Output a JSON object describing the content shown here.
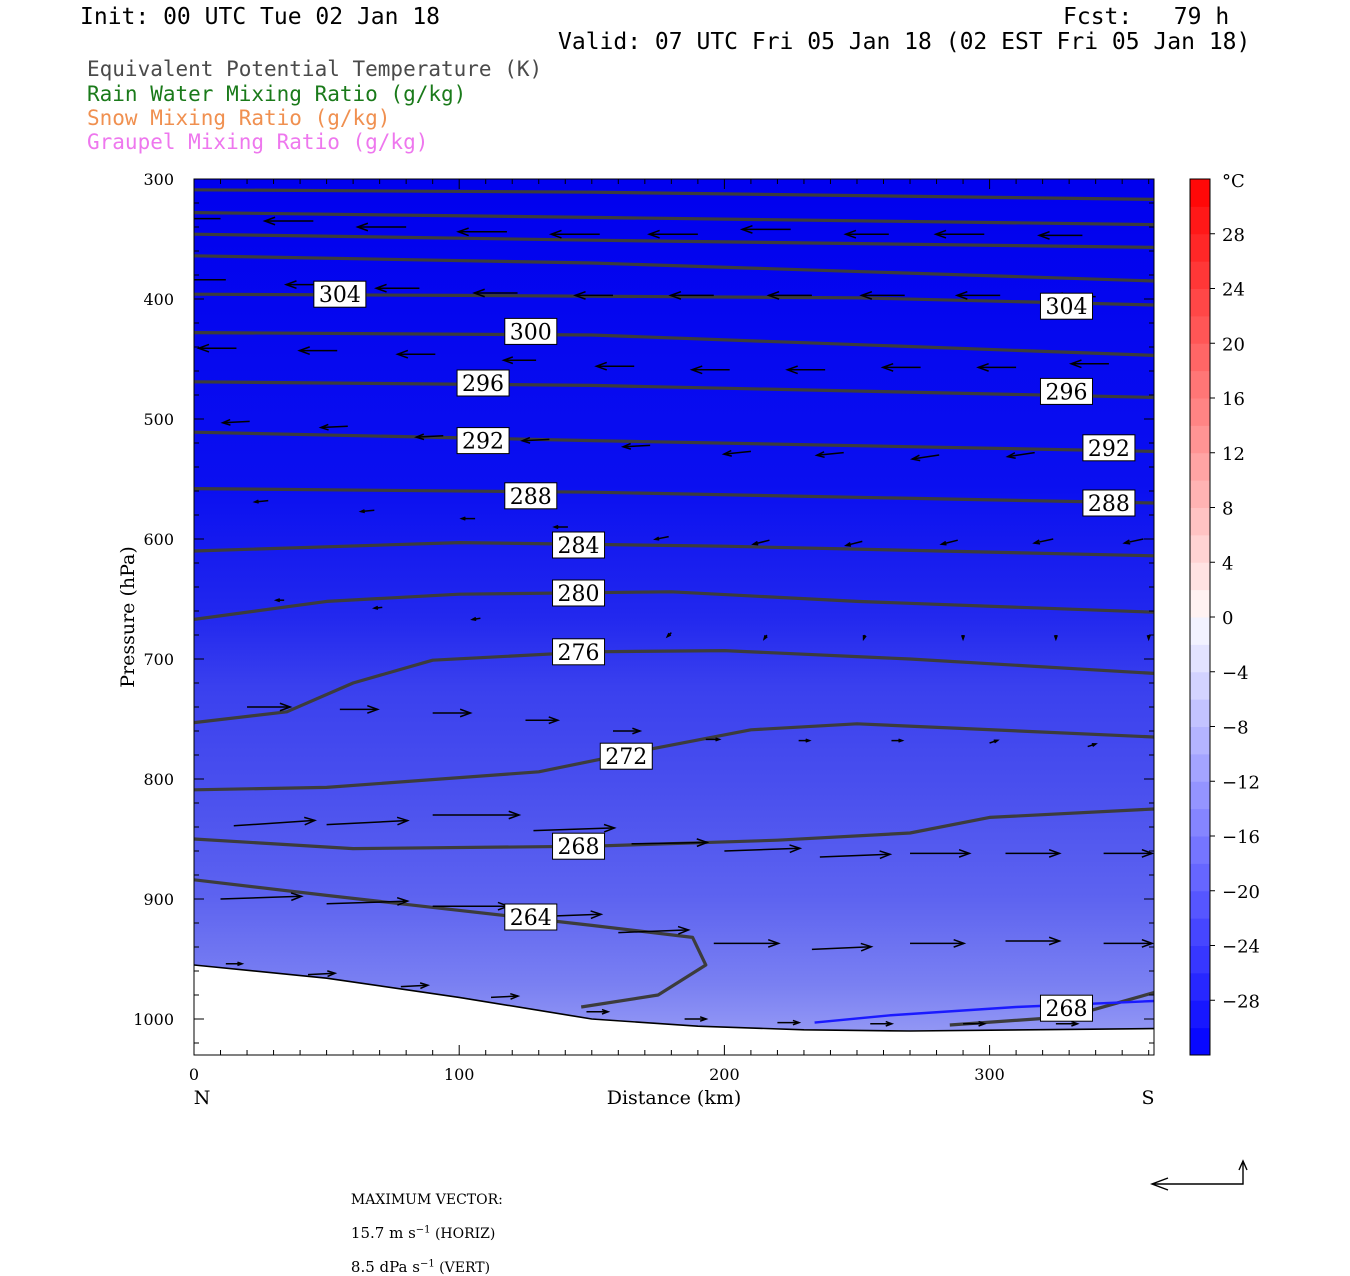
{
  "header": {
    "init": "Init: 00 UTC Tue 02 Jan 18",
    "fcst": "Fcst:   79 h",
    "valid": "Valid: 07 UTC Fri 05 Jan 18 (02 EST Fri 05 Jan 18)"
  },
  "legend": [
    {
      "text": "Equivalent Potential Temperature (K)",
      "color": "#4a4a4a"
    },
    {
      "text": "Rain Water Mixing Ratio (g/kg)",
      "color": "#1a7a1a"
    },
    {
      "text": "Snow Mixing Ratio (g/kg)",
      "color": "#f09050"
    },
    {
      "text": "Graupel Mixing Ratio (g/kg)",
      "color": "#ee77ee"
    }
  ],
  "chart_data": {
    "type": "cross-section",
    "xlabel": "Distance (km)",
    "ylabel": "Pressure (hPa)",
    "xlim": [
      0,
      362
    ],
    "ylim": [
      1030,
      300
    ],
    "x_ticks": [
      0,
      100,
      200,
      300
    ],
    "y_ticks": [
      300,
      400,
      500,
      600,
      700,
      800,
      900,
      1000
    ],
    "x_end_labels": {
      "left": "N",
      "right": "S"
    },
    "colorbar": {
      "unit": "°C",
      "bounds": [
        -32,
        32
      ],
      "tick_labels": [
        "28",
        "24",
        "20",
        "16",
        "12",
        "8",
        "4",
        "0",
        "−4",
        "−8",
        "−12",
        "−16",
        "−20",
        "−24",
        "−28"
      ],
      "tick_values": [
        28,
        24,
        20,
        16,
        12,
        8,
        4,
        0,
        -4,
        -8,
        -12,
        -16,
        -20,
        -24,
        -28
      ]
    },
    "theta_e_labels": [
      {
        "text": "304",
        "x": 55,
        "p": 396
      },
      {
        "text": "304",
        "x": 329,
        "p": 406
      },
      {
        "text": "300",
        "x": 127,
        "p": 427
      },
      {
        "text": "296",
        "x": 109,
        "p": 470
      },
      {
        "text": "296",
        "x": 329,
        "p": 477
      },
      {
        "text": "292",
        "x": 109,
        "p": 518
      },
      {
        "text": "292",
        "x": 345,
        "p": 524
      },
      {
        "text": "288",
        "x": 127,
        "p": 564
      },
      {
        "text": "288",
        "x": 345,
        "p": 570
      },
      {
        "text": "284",
        "x": 145,
        "p": 605
      },
      {
        "text": "280",
        "x": 145,
        "p": 645
      },
      {
        "text": "276",
        "x": 145,
        "p": 694
      },
      {
        "text": "272",
        "x": 163,
        "p": 781
      },
      {
        "text": "268",
        "x": 145,
        "p": 856
      },
      {
        "text": "264",
        "x": 127,
        "p": 915
      },
      {
        "text": "268",
        "x": 329,
        "p": 991
      }
    ],
    "theta_e_contours": [
      {
        "level": 312,
        "points": [
          [
            0,
            309
          ],
          [
            150,
            311
          ],
          [
            362,
            317
          ]
        ]
      },
      {
        "level": 308,
        "points": [
          [
            0,
            328
          ],
          [
            150,
            332
          ],
          [
            362,
            338
          ]
        ]
      },
      {
        "level": 306,
        "points": [
          [
            0,
            346
          ],
          [
            150,
            351
          ],
          [
            362,
            357
          ]
        ]
      },
      {
        "level": 304,
        "points": [
          [
            0,
            396
          ],
          [
            100,
            397
          ],
          [
            250,
            399
          ],
          [
            362,
            405
          ]
        ]
      },
      {
        "level": 300,
        "points": [
          [
            0,
            428
          ],
          [
            150,
            430
          ],
          [
            362,
            447
          ]
        ]
      },
      {
        "level": 302,
        "points": [
          [
            0,
            364
          ],
          [
            150,
            370
          ],
          [
            362,
            385
          ]
        ]
      },
      {
        "level": 296,
        "points": [
          [
            0,
            469
          ],
          [
            150,
            472
          ],
          [
            362,
            482
          ]
        ]
      },
      {
        "level": 292,
        "points": [
          [
            0,
            511
          ],
          [
            150,
            518
          ],
          [
            362,
            527
          ]
        ]
      },
      {
        "level": 288,
        "points": [
          [
            0,
            558
          ],
          [
            150,
            561
          ],
          [
            362,
            570
          ]
        ]
      },
      {
        "level": 284,
        "points": [
          [
            0,
            610
          ],
          [
            100,
            603
          ],
          [
            200,
            606
          ],
          [
            362,
            614
          ]
        ]
      },
      {
        "level": 280,
        "points": [
          [
            0,
            667
          ],
          [
            50,
            652
          ],
          [
            100,
            646
          ],
          [
            180,
            644
          ],
          [
            250,
            652
          ],
          [
            362,
            661
          ]
        ]
      },
      {
        "level": 276,
        "points": [
          [
            0,
            753
          ],
          [
            35,
            744
          ],
          [
            60,
            720
          ],
          [
            90,
            701
          ],
          [
            150,
            694
          ],
          [
            200,
            693
          ],
          [
            270,
            700
          ],
          [
            362,
            712
          ]
        ]
      },
      {
        "level": 272,
        "points": [
          [
            0,
            809
          ],
          [
            50,
            807
          ],
          [
            130,
            794
          ],
          [
            170,
            776
          ],
          [
            210,
            759
          ],
          [
            250,
            754
          ],
          [
            362,
            765
          ]
        ]
      },
      {
        "level": 268,
        "points": [
          [
            0,
            850
          ],
          [
            60,
            858
          ],
          [
            150,
            856
          ],
          [
            220,
            851
          ],
          [
            270,
            845
          ],
          [
            300,
            832
          ],
          [
            362,
            825
          ]
        ]
      },
      {
        "level": 264,
        "points": [
          [
            0,
            884
          ],
          [
            50,
            897
          ],
          [
            150,
            922
          ],
          [
            188,
            932
          ],
          [
            193,
            955
          ],
          [
            175,
            980
          ],
          [
            146,
            990
          ]
        ]
      },
      {
        "level": 268,
        "points": [
          [
            285,
            1005
          ],
          [
            330,
            998
          ],
          [
            362,
            978
          ]
        ]
      }
    ],
    "rain_contour": {
      "level": 0.01,
      "points": [
        [
          234,
          1003
        ],
        [
          262,
          997
        ],
        [
          310,
          990
        ],
        [
          362,
          985
        ]
      ]
    },
    "wind_vectors": [
      {
        "x": 10,
        "p": 333,
        "u": 20,
        "w": 0
      },
      {
        "x": 45,
        "p": 335,
        "u": 18,
        "w": 0
      },
      {
        "x": 80,
        "p": 340,
        "u": 18,
        "w": 0
      },
      {
        "x": 118,
        "p": 344,
        "u": 18,
        "w": 0
      },
      {
        "x": 153,
        "p": 346,
        "u": 18,
        "w": 0
      },
      {
        "x": 190,
        "p": 346,
        "u": 18,
        "w": 0
      },
      {
        "x": 225,
        "p": 342,
        "u": 18,
        "w": 0
      },
      {
        "x": 262,
        "p": 346,
        "u": 16,
        "w": 0
      },
      {
        "x": 298,
        "p": 346,
        "u": 18,
        "w": 0
      },
      {
        "x": 335,
        "p": 347,
        "u": 16,
        "w": 0
      },
      {
        "x": 12,
        "p": 384,
        "u": 16,
        "w": 0
      },
      {
        "x": 49,
        "p": 388,
        "u": 14,
        "w": 0
      },
      {
        "x": 85,
        "p": 391,
        "u": 16,
        "w": 0
      },
      {
        "x": 122,
        "p": 395,
        "u": 16,
        "w": 0
      },
      {
        "x": 158,
        "p": 397,
        "u": 14,
        "w": 0
      },
      {
        "x": 196,
        "p": 397,
        "u": 16,
        "w": 0
      },
      {
        "x": 233,
        "p": 397,
        "u": 16,
        "w": 0
      },
      {
        "x": 268,
        "p": 397,
        "u": 16,
        "w": 0
      },
      {
        "x": 304,
        "p": 397,
        "u": 16,
        "w": 0
      },
      {
        "x": 340,
        "p": 398,
        "u": 16,
        "w": 0
      },
      {
        "x": 16,
        "p": 441,
        "u": 14,
        "w": 0
      },
      {
        "x": 54,
        "p": 443,
        "u": 14,
        "w": 0
      },
      {
        "x": 91,
        "p": 446,
        "u": 14,
        "w": 0
      },
      {
        "x": 129,
        "p": 451,
        "u": 12,
        "w": 0
      },
      {
        "x": 166,
        "p": 456,
        "u": 14,
        "w": 0
      },
      {
        "x": 202,
        "p": 459,
        "u": 14,
        "w": 0
      },
      {
        "x": 238,
        "p": 459,
        "u": 14,
        "w": 0
      },
      {
        "x": 274,
        "p": 457,
        "u": 14,
        "w": 0
      },
      {
        "x": 310,
        "p": 457,
        "u": 14,
        "w": 0
      },
      {
        "x": 345,
        "p": 454,
        "u": 14,
        "w": 0
      },
      {
        "x": 21,
        "p": 502,
        "u": 10,
        "w": 0.5
      },
      {
        "x": 58,
        "p": 506,
        "u": 10,
        "w": 0.5
      },
      {
        "x": 94,
        "p": 514,
        "u": 10,
        "w": 0.5
      },
      {
        "x": 134,
        "p": 517,
        "u": 10,
        "w": 0.5
      },
      {
        "x": 172,
        "p": 522,
        "u": 10,
        "w": 0.5
      },
      {
        "x": 210,
        "p": 527,
        "u": 10,
        "w": 1
      },
      {
        "x": 245,
        "p": 528,
        "u": 10,
        "w": 1
      },
      {
        "x": 281,
        "p": 530,
        "u": 10,
        "w": 1.5
      },
      {
        "x": 317,
        "p": 528,
        "u": 10,
        "w": 1.5
      },
      {
        "x": 353,
        "p": 526,
        "u": 10,
        "w": 1
      },
      {
        "x": 28,
        "p": 568,
        "u": 5,
        "w": 0.5
      },
      {
        "x": 68,
        "p": 576,
        "u": 5,
        "w": 0.5
      },
      {
        "x": 106,
        "p": 583,
        "u": 5,
        "w": 0
      },
      {
        "x": 141,
        "p": 590,
        "u": 5,
        "w": 0
      },
      {
        "x": 179,
        "p": 598,
        "u": 5,
        "w": 1
      },
      {
        "x": 217,
        "p": 601,
        "u": 6,
        "w": 1.5
      },
      {
        "x": 252,
        "p": 602,
        "u": 6,
        "w": 1.5
      },
      {
        "x": 288,
        "p": 601,
        "u": 6,
        "w": 1.5
      },
      {
        "x": 324,
        "p": 600,
        "u": 7,
        "w": 1.5
      },
      {
        "x": 358,
        "p": 600,
        "u": 7,
        "w": 1.5
      },
      {
        "x": 34,
        "p": 651,
        "u": 3,
        "w": 0
      },
      {
        "x": 71,
        "p": 657,
        "u": 3,
        "w": 0.3
      },
      {
        "x": 108,
        "p": 666,
        "u": 3,
        "w": 0.5
      },
      {
        "x": 180,
        "p": 678,
        "u": 1.5,
        "w": 1.5
      },
      {
        "x": 216,
        "p": 680,
        "u": 1,
        "w": 1.5
      },
      {
        "x": 253,
        "p": 680,
        "u": 0.5,
        "w": 1.5
      },
      {
        "x": 290,
        "p": 680,
        "u": 0,
        "w": 1.5
      },
      {
        "x": 325,
        "p": 680,
        "u": 0,
        "w": 1.5
      },
      {
        "x": 360,
        "p": 680,
        "u": 0,
        "w": 1.5
      },
      {
        "x": 20,
        "p": 740,
        "u": -16,
        "w": 0
      },
      {
        "x": 55,
        "p": 742,
        "u": -14,
        "w": 0
      },
      {
        "x": 90,
        "p": 745,
        "u": -14,
        "w": 0
      },
      {
        "x": 125,
        "p": 751,
        "u": -12,
        "w": 0
      },
      {
        "x": 158,
        "p": 760,
        "u": -10,
        "w": 0
      },
      {
        "x": 193,
        "p": 767,
        "u": -5,
        "w": 0
      },
      {
        "x": 228,
        "p": 768,
        "u": -4,
        "w": 0
      },
      {
        "x": 263,
        "p": 768,
        "u": -4,
        "w": 0
      },
      {
        "x": 300,
        "p": 770,
        "u": -3,
        "w": -1
      },
      {
        "x": 337,
        "p": 773,
        "u": -3,
        "w": -1
      },
      {
        "x": 15,
        "p": 839,
        "u": -30,
        "w": -2
      },
      {
        "x": 50,
        "p": 838,
        "u": -30,
        "w": -1.5
      },
      {
        "x": 90,
        "p": 830,
        "u": -32,
        "w": 0
      },
      {
        "x": 128,
        "p": 843,
        "u": -30,
        "w": -1
      },
      {
        "x": 165,
        "p": 854,
        "u": -28,
        "w": -0.5
      },
      {
        "x": 200,
        "p": 860,
        "u": -28,
        "w": -1
      },
      {
        "x": 236,
        "p": 865,
        "u": -26,
        "w": -1
      },
      {
        "x": 270,
        "p": 862,
        "u": -22,
        "w": 0
      },
      {
        "x": 306,
        "p": 862,
        "u": -20,
        "w": 0
      },
      {
        "x": 343,
        "p": 862,
        "u": -18,
        "w": 0
      },
      {
        "x": 10,
        "p": 900,
        "u": -30,
        "w": -1
      },
      {
        "x": 50,
        "p": 904,
        "u": -30,
        "w": -1
      },
      {
        "x": 90,
        "p": 906,
        "u": -28,
        "w": 0
      },
      {
        "x": 125,
        "p": 915,
        "u": -28,
        "w": -1
      },
      {
        "x": 160,
        "p": 928,
        "u": -26,
        "w": -1
      },
      {
        "x": 196,
        "p": 937,
        "u": -24,
        "w": 0
      },
      {
        "x": 233,
        "p": 942,
        "u": -22,
        "w": -1
      },
      {
        "x": 270,
        "p": 937,
        "u": -20,
        "w": 0
      },
      {
        "x": 306,
        "p": 935,
        "u": -20,
        "w": 0
      },
      {
        "x": 343,
        "p": 937,
        "u": -18,
        "w": 0
      },
      {
        "x": 12,
        "p": 954,
        "u": -6,
        "w": 0
      },
      {
        "x": 43,
        "p": 963,
        "u": -10,
        "w": -0.5
      },
      {
        "x": 78,
        "p": 973,
        "u": -10,
        "w": -0.5
      },
      {
        "x": 112,
        "p": 982,
        "u": -10,
        "w": -0.5
      },
      {
        "x": 148,
        "p": 994,
        "u": -8,
        "w": 0
      },
      {
        "x": 185,
        "p": 1000,
        "u": -8,
        "w": 0
      },
      {
        "x": 220,
        "p": 1003,
        "u": -8,
        "w": 0
      },
      {
        "x": 255,
        "p": 1004,
        "u": -8,
        "w": 0
      },
      {
        "x": 290,
        "p": 1004,
        "u": -8,
        "w": 0
      },
      {
        "x": 325,
        "p": 1004,
        "u": -8,
        "w": 0
      }
    ],
    "terrain": [
      [
        0,
        955
      ],
      [
        50,
        966
      ],
      [
        100,
        982
      ],
      [
        150,
        1000
      ],
      [
        190,
        1006
      ],
      [
        230,
        1009
      ],
      [
        270,
        1010
      ],
      [
        362,
        1008
      ]
    ]
  },
  "footer": {
    "label": "MAXIMUM VECTOR:",
    "horiz_value": "15.7 m s",
    "horiz_exp": "−1",
    "horiz_tag": " (HORIZ)",
    "vert_value": "8.5 dPa s",
    "vert_exp": "−1",
    "vert_tag": " (VERT)"
  }
}
